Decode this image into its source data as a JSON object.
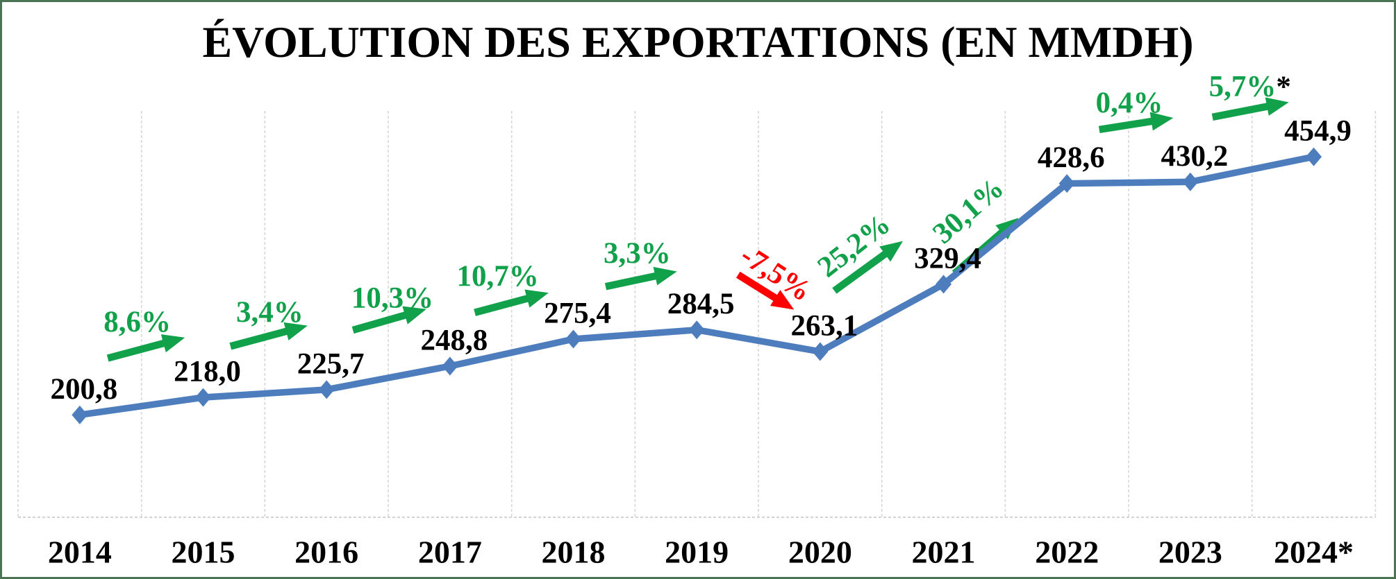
{
  "chart_data": {
    "type": "line",
    "title": "ÉVOLUTION DES EXPORTATIONS (EN MMDH)",
    "unit": "MMDH",
    "categories": [
      "2014",
      "2015",
      "2016",
      "2017",
      "2018",
      "2019",
      "2020",
      "2021",
      "2022",
      "2023",
      "2024*"
    ],
    "values": [
      200.8,
      218.0,
      225.7,
      248.8,
      275.4,
      284.5,
      263.1,
      329.4,
      428.6,
      430.2,
      454.9
    ],
    "point_labels": [
      "200,8",
      "218,0",
      "225,7",
      "248,8",
      "275,4",
      "284,5",
      "263,1",
      "329,4",
      "428,6",
      "430,2",
      "454,9"
    ],
    "changes": [
      {
        "label": "8,6%",
        "color": "green",
        "angle": -15,
        "label_angle": 0,
        "suffix": ""
      },
      {
        "label": "3,4%",
        "color": "green",
        "angle": -15,
        "label_angle": 0,
        "suffix": ""
      },
      {
        "label": "10,3%",
        "color": "green",
        "angle": -16,
        "label_angle": 0,
        "suffix": ""
      },
      {
        "label": "10,7%",
        "color": "green",
        "angle": -15,
        "label_angle": 0,
        "suffix": ""
      },
      {
        "label": "3,3%",
        "color": "green",
        "angle": -12,
        "label_angle": 0,
        "suffix": ""
      },
      {
        "label": "-7,5%",
        "color": "red",
        "angle": 32,
        "label_angle": 33,
        "suffix": ""
      },
      {
        "label": "25,2%",
        "color": "green",
        "angle": -36,
        "label_angle": -38,
        "suffix": ""
      },
      {
        "label": "30,1%",
        "color": "green",
        "angle": -41,
        "label_angle": -41,
        "suffix": ""
      },
      {
        "label": "0,4%",
        "color": "green",
        "angle": -9,
        "label_angle": 0,
        "suffix": ""
      },
      {
        "label": "5,7%",
        "color": "green",
        "angle": -11,
        "label_angle": 0,
        "suffix": "*"
      }
    ],
    "colors": {
      "line": "#4e7dbe",
      "marker": "#4e7dbe",
      "up": "#12a14b",
      "down": "#fe0000",
      "value_label": "#000000",
      "grid": "#d8d5d5",
      "axis": "#cfcccc",
      "border": "#4a7454",
      "background": "#ffffff"
    },
    "axis": {
      "y_min": 100,
      "y_max": 500,
      "y_axis_labels_visible": false,
      "grid": "vertical-dashed"
    },
    "legend": "none"
  }
}
